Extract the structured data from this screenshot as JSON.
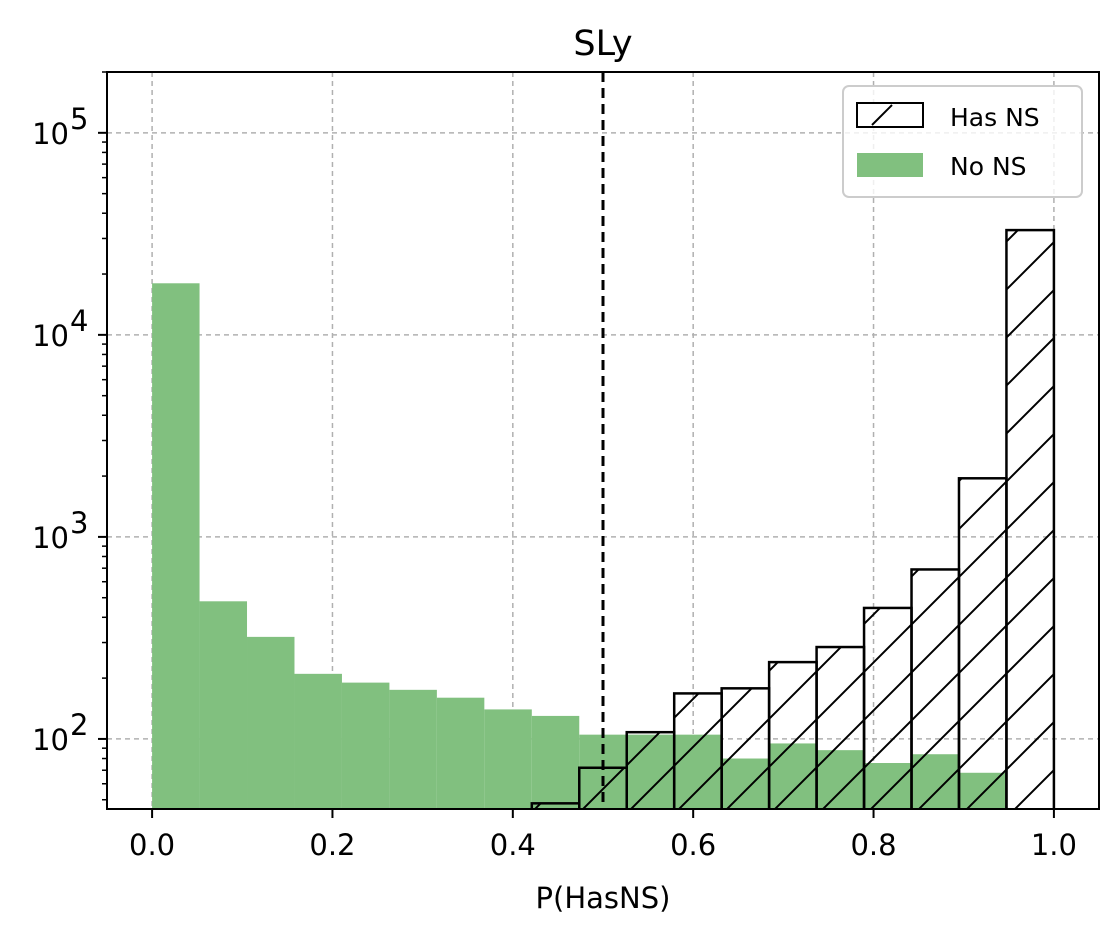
{
  "chart_data": {
    "type": "bar",
    "title": "SLy",
    "xlabel": "P(HasNS)",
    "ylabel": "",
    "xlim": [
      -0.05,
      1.05
    ],
    "ylim": [
      45,
      200000
    ],
    "yscale": "log",
    "grid": true,
    "x_ticks": [
      0.0,
      0.2,
      0.4,
      0.6,
      0.8,
      1.0
    ],
    "x_tick_labels": [
      "0.0",
      "0.2",
      "0.4",
      "0.6",
      "0.8",
      "1.0"
    ],
    "y_ticks": [
      100,
      1000,
      10000,
      100000
    ],
    "y_tick_exponents": [
      "2",
      "3",
      "4",
      "5"
    ],
    "y_tick_base": "10",
    "threshold_line": 0.5,
    "legend_position": "top-right",
    "bin_edges": [
      0.0,
      0.05263,
      0.10526,
      0.15789,
      0.21053,
      0.26316,
      0.31579,
      0.36842,
      0.42105,
      0.47368,
      0.52632,
      0.57895,
      0.63158,
      0.68421,
      0.73684,
      0.78947,
      0.84211,
      0.89474,
      0.94737,
      1.0
    ],
    "series": [
      {
        "name": "Has NS",
        "style": "hatch",
        "color": "#000000",
        "values": [
          0,
          0,
          0,
          0,
          0,
          0,
          0,
          0,
          48,
          72,
          108,
          168,
          178,
          240,
          285,
          445,
          690,
          1950,
          33000
        ]
      },
      {
        "name": "No NS",
        "style": "filled",
        "color": "#81c07f",
        "values": [
          18000,
          480,
          320,
          210,
          190,
          175,
          160,
          140,
          130,
          105,
          105,
          105,
          80,
          95,
          88,
          76,
          84,
          68,
          0
        ]
      }
    ]
  }
}
